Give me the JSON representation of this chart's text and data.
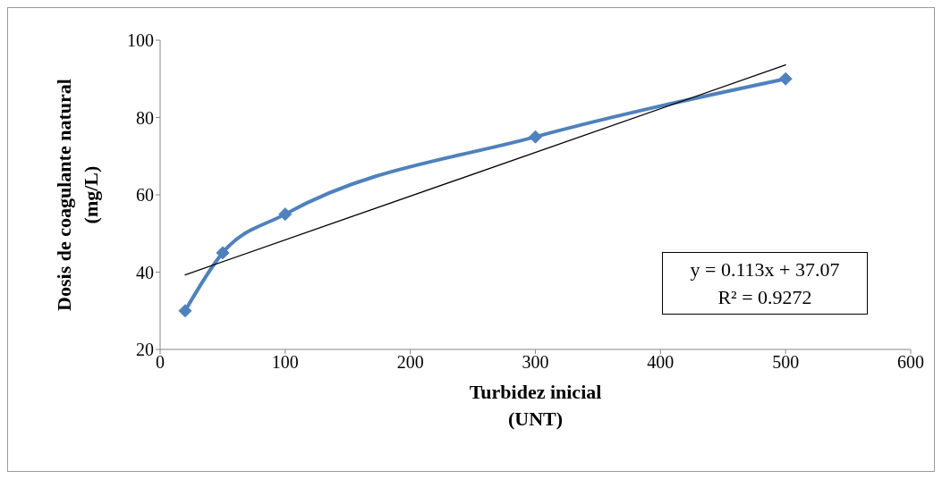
{
  "chart_data": {
    "type": "line",
    "xlabel": "Turbidez inicial\n(UNT)",
    "ylabel": "Dosis de coagulante natural\n(mg/L)",
    "xlim": [
      0,
      600
    ],
    "xticks": [
      0,
      100,
      200,
      300,
      400,
      500,
      600
    ],
    "ylim": [
      20,
      100
    ],
    "yticks": [
      20,
      40,
      60,
      80,
      100
    ],
    "grid": false,
    "series": [
      {
        "color": "#4f81bd",
        "marker": "diamond",
        "x": [
          20,
          50,
          100,
          300,
          500
        ],
        "values": [
          30,
          45,
          55,
          75,
          90
        ]
      },
      {
        "color": "#000000",
        "marker": "none",
        "x": [
          20,
          500
        ],
        "values": [
          39.3,
          93.6
        ]
      }
    ],
    "annotations": [
      "y = 0.113x + 37.07",
      "R² = 0.9272"
    ]
  }
}
